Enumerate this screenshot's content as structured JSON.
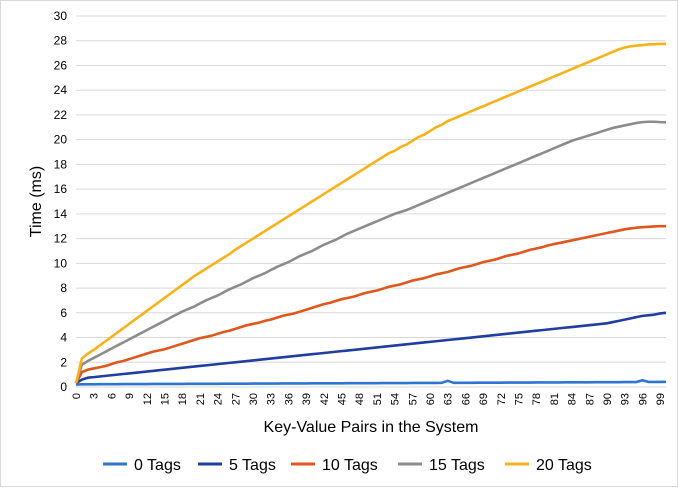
{
  "chart_data": {
    "type": "line",
    "title": "",
    "xlabel": "Key-Value Pairs in the System",
    "ylabel": "Time (ms)",
    "ylim": [
      0,
      30
    ],
    "y_ticks": [
      0,
      2,
      4,
      6,
      8,
      10,
      12,
      14,
      16,
      18,
      20,
      22,
      24,
      26,
      28,
      30
    ],
    "x_tick_labels": [
      "0",
      "3",
      "6",
      "9",
      "12",
      "15",
      "18",
      "21",
      "24",
      "27",
      "30",
      "33",
      "36",
      "39",
      "42",
      "45",
      "48",
      "51",
      "54",
      "57",
      "60",
      "63",
      "66",
      "69",
      "72",
      "75",
      "78",
      "81",
      "84",
      "87",
      "90",
      "93",
      "96",
      "99"
    ],
    "x": [
      0,
      1,
      2,
      3,
      4,
      5,
      6,
      7,
      8,
      9,
      10,
      11,
      12,
      13,
      14,
      15,
      16,
      17,
      18,
      19,
      20,
      21,
      22,
      23,
      24,
      25,
      26,
      27,
      28,
      29,
      30,
      31,
      32,
      33,
      34,
      35,
      36,
      37,
      38,
      39,
      40,
      41,
      42,
      43,
      44,
      45,
      46,
      47,
      48,
      49,
      50,
      51,
      52,
      53,
      54,
      55,
      56,
      57,
      58,
      59,
      60,
      61,
      62,
      63,
      64,
      65,
      66,
      67,
      68,
      69,
      70,
      71,
      72,
      73,
      74,
      75,
      76,
      77,
      78,
      79,
      80,
      81,
      82,
      83,
      84,
      85,
      86,
      87,
      88,
      89,
      90,
      91,
      92,
      93,
      94,
      95,
      96,
      97,
      98,
      99,
      100
    ],
    "grid": true,
    "legend_position": "bottom",
    "series": [
      {
        "name": "0 Tags",
        "color": "#2e75d2",
        "values": [
          0.2,
          0.22,
          0.22,
          0.22,
          0.23,
          0.23,
          0.23,
          0.23,
          0.24,
          0.24,
          0.24,
          0.24,
          0.24,
          0.25,
          0.25,
          0.25,
          0.25,
          0.25,
          0.25,
          0.26,
          0.26,
          0.26,
          0.26,
          0.26,
          0.26,
          0.27,
          0.27,
          0.27,
          0.27,
          0.27,
          0.28,
          0.28,
          0.28,
          0.28,
          0.28,
          0.29,
          0.29,
          0.29,
          0.29,
          0.29,
          0.3,
          0.3,
          0.3,
          0.3,
          0.3,
          0.3,
          0.31,
          0.31,
          0.31,
          0.31,
          0.31,
          0.31,
          0.32,
          0.32,
          0.32,
          0.32,
          0.32,
          0.33,
          0.33,
          0.33,
          0.33,
          0.33,
          0.34,
          0.5,
          0.34,
          0.34,
          0.34,
          0.34,
          0.35,
          0.35,
          0.35,
          0.35,
          0.35,
          0.36,
          0.36,
          0.36,
          0.36,
          0.36,
          0.37,
          0.37,
          0.37,
          0.37,
          0.37,
          0.38,
          0.38,
          0.38,
          0.38,
          0.38,
          0.39,
          0.39,
          0.39,
          0.39,
          0.39,
          0.4,
          0.4,
          0.4,
          0.55,
          0.41,
          0.41,
          0.41,
          0.42
        ]
      },
      {
        "name": "5 Tags",
        "color": "#1f3ea0",
        "values": [
          0.3,
          0.6,
          0.75,
          0.8,
          0.85,
          0.9,
          0.95,
          1.0,
          1.05,
          1.1,
          1.15,
          1.2,
          1.25,
          1.3,
          1.35,
          1.4,
          1.45,
          1.5,
          1.55,
          1.6,
          1.65,
          1.7,
          1.75,
          1.8,
          1.85,
          1.9,
          1.95,
          2.0,
          2.05,
          2.1,
          2.15,
          2.2,
          2.25,
          2.3,
          2.35,
          2.4,
          2.45,
          2.5,
          2.55,
          2.6,
          2.65,
          2.7,
          2.75,
          2.8,
          2.85,
          2.9,
          2.95,
          3.0,
          3.05,
          3.1,
          3.15,
          3.2,
          3.25,
          3.3,
          3.35,
          3.4,
          3.45,
          3.5,
          3.55,
          3.6,
          3.65,
          3.7,
          3.75,
          3.8,
          3.85,
          3.9,
          3.95,
          4.0,
          4.05,
          4.1,
          4.15,
          4.2,
          4.25,
          4.3,
          4.35,
          4.4,
          4.45,
          4.5,
          4.55,
          4.6,
          4.65,
          4.7,
          4.75,
          4.8,
          4.85,
          4.9,
          4.95,
          5.0,
          5.05,
          5.1,
          5.15,
          5.25,
          5.35,
          5.45,
          5.55,
          5.65,
          5.75,
          5.8,
          5.85,
          5.95,
          6.0
        ]
      },
      {
        "name": "10 Tags",
        "color": "#e0561d",
        "values": [
          0.3,
          1.2,
          1.4,
          1.5,
          1.6,
          1.7,
          1.85,
          2.0,
          2.1,
          2.25,
          2.4,
          2.55,
          2.7,
          2.85,
          2.95,
          3.05,
          3.2,
          3.35,
          3.5,
          3.65,
          3.8,
          3.95,
          4.05,
          4.15,
          4.3,
          4.45,
          4.55,
          4.7,
          4.85,
          5.0,
          5.1,
          5.2,
          5.35,
          5.45,
          5.6,
          5.75,
          5.85,
          5.95,
          6.1,
          6.25,
          6.4,
          6.55,
          6.7,
          6.8,
          6.95,
          7.1,
          7.2,
          7.3,
          7.45,
          7.6,
          7.7,
          7.8,
          7.95,
          8.1,
          8.2,
          8.3,
          8.45,
          8.6,
          8.7,
          8.8,
          8.95,
          9.1,
          9.2,
          9.3,
          9.45,
          9.6,
          9.7,
          9.8,
          9.95,
          10.1,
          10.2,
          10.3,
          10.45,
          10.6,
          10.7,
          10.8,
          10.95,
          11.1,
          11.2,
          11.3,
          11.45,
          11.55,
          11.65,
          11.75,
          11.85,
          11.95,
          12.05,
          12.15,
          12.25,
          12.35,
          12.45,
          12.55,
          12.65,
          12.75,
          12.82,
          12.88,
          12.92,
          12.95,
          12.98,
          13.0,
          13.0
        ]
      },
      {
        "name": "15 Tags",
        "color": "#8c8c8c",
        "values": [
          0.3,
          1.8,
          2.1,
          2.35,
          2.6,
          2.85,
          3.1,
          3.35,
          3.6,
          3.85,
          4.1,
          4.35,
          4.6,
          4.85,
          5.1,
          5.35,
          5.6,
          5.85,
          6.1,
          6.3,
          6.5,
          6.75,
          7.0,
          7.2,
          7.4,
          7.65,
          7.9,
          8.1,
          8.3,
          8.55,
          8.8,
          9.0,
          9.2,
          9.45,
          9.7,
          9.9,
          10.1,
          10.35,
          10.6,
          10.8,
          11.0,
          11.25,
          11.5,
          11.7,
          11.9,
          12.15,
          12.4,
          12.6,
          12.8,
          13.0,
          13.2,
          13.4,
          13.6,
          13.8,
          14.0,
          14.15,
          14.3,
          14.5,
          14.7,
          14.9,
          15.1,
          15.3,
          15.5,
          15.7,
          15.9,
          16.1,
          16.3,
          16.5,
          16.7,
          16.9,
          17.1,
          17.3,
          17.5,
          17.7,
          17.9,
          18.1,
          18.3,
          18.5,
          18.7,
          18.9,
          19.1,
          19.3,
          19.5,
          19.7,
          19.9,
          20.05,
          20.2,
          20.35,
          20.5,
          20.65,
          20.8,
          20.95,
          21.05,
          21.15,
          21.25,
          21.35,
          21.42,
          21.45,
          21.45,
          21.42,
          21.4
        ]
      },
      {
        "name": "20 Tags",
        "color": "#f7b21b",
        "values": [
          0.3,
          2.3,
          2.7,
          3.0,
          3.35,
          3.7,
          4.05,
          4.4,
          4.75,
          5.1,
          5.45,
          5.8,
          6.15,
          6.5,
          6.85,
          7.2,
          7.55,
          7.9,
          8.25,
          8.6,
          8.95,
          9.25,
          9.55,
          9.85,
          10.15,
          10.45,
          10.75,
          11.1,
          11.4,
          11.7,
          12.0,
          12.3,
          12.6,
          12.9,
          13.2,
          13.5,
          13.8,
          14.1,
          14.4,
          14.7,
          15.0,
          15.3,
          15.6,
          15.9,
          16.2,
          16.5,
          16.8,
          17.1,
          17.4,
          17.7,
          18.0,
          18.3,
          18.6,
          18.9,
          19.1,
          19.4,
          19.6,
          19.9,
          20.2,
          20.4,
          20.7,
          21.0,
          21.2,
          21.5,
          21.7,
          21.9,
          22.1,
          22.3,
          22.5,
          22.7,
          22.9,
          23.1,
          23.3,
          23.5,
          23.7,
          23.9,
          24.1,
          24.3,
          24.5,
          24.7,
          24.9,
          25.1,
          25.3,
          25.5,
          25.7,
          25.9,
          26.1,
          26.3,
          26.5,
          26.7,
          26.9,
          27.1,
          27.3,
          27.45,
          27.55,
          27.6,
          27.65,
          27.7,
          27.72,
          27.74,
          27.75
        ]
      }
    ]
  }
}
